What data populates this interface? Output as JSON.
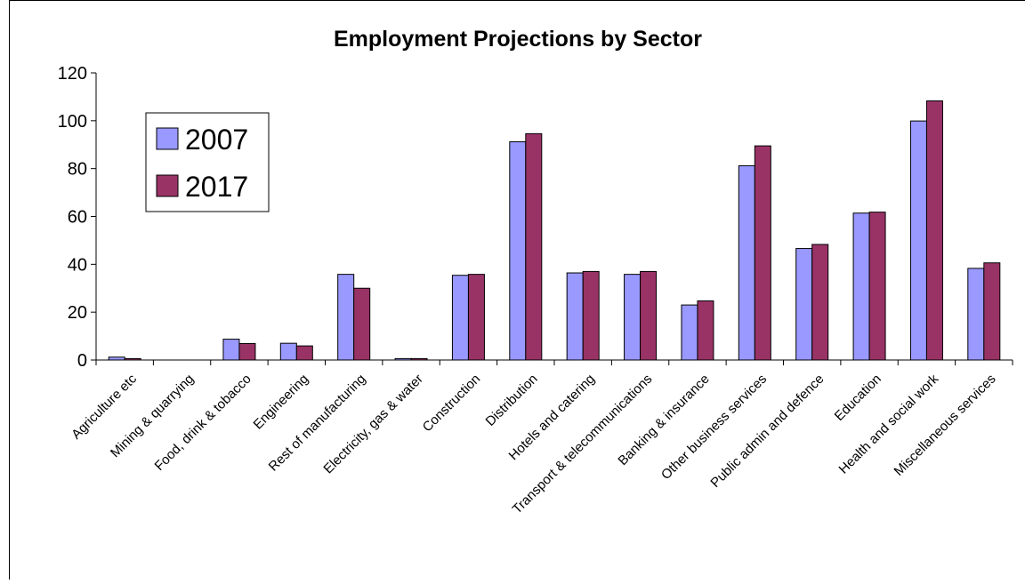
{
  "chart_data": {
    "type": "bar",
    "title": "Employment Projections by Sector",
    "xlabel": "",
    "ylabel": "",
    "ylim": [
      0,
      120
    ],
    "yticks": [
      0,
      20,
      40,
      60,
      80,
      100,
      120
    ],
    "grid": false,
    "legend_position": "top-left",
    "categories": [
      "Agriculture etc",
      "Mining & quarrying",
      "Food, drink & tobacco",
      "Engineering",
      "Rest of manufacturing",
      "Electricity, gas & water",
      "Construction",
      "Distribution",
      "Hotels and catering",
      "Transport & telecommunications",
      "Banking & insurance",
      "Other business services",
      "Public admin and defence",
      "Education",
      "Health and social work",
      "Miscellaneous services"
    ],
    "series": [
      {
        "name": "2007",
        "color": "#9999ff",
        "values": [
          1.2,
          0,
          8.7,
          7.0,
          35.8,
          0.6,
          35.4,
          91.2,
          36.4,
          35.8,
          23.0,
          81.2,
          46.6,
          61.4,
          99.9,
          38.3
        ]
      },
      {
        "name": "2017",
        "color": "#993366",
        "values": [
          0.6,
          0,
          6.9,
          5.9,
          30.0,
          0.6,
          35.8,
          94.6,
          37.0,
          37.0,
          24.7,
          89.5,
          48.3,
          61.8,
          108.3,
          40.6
        ]
      }
    ]
  }
}
